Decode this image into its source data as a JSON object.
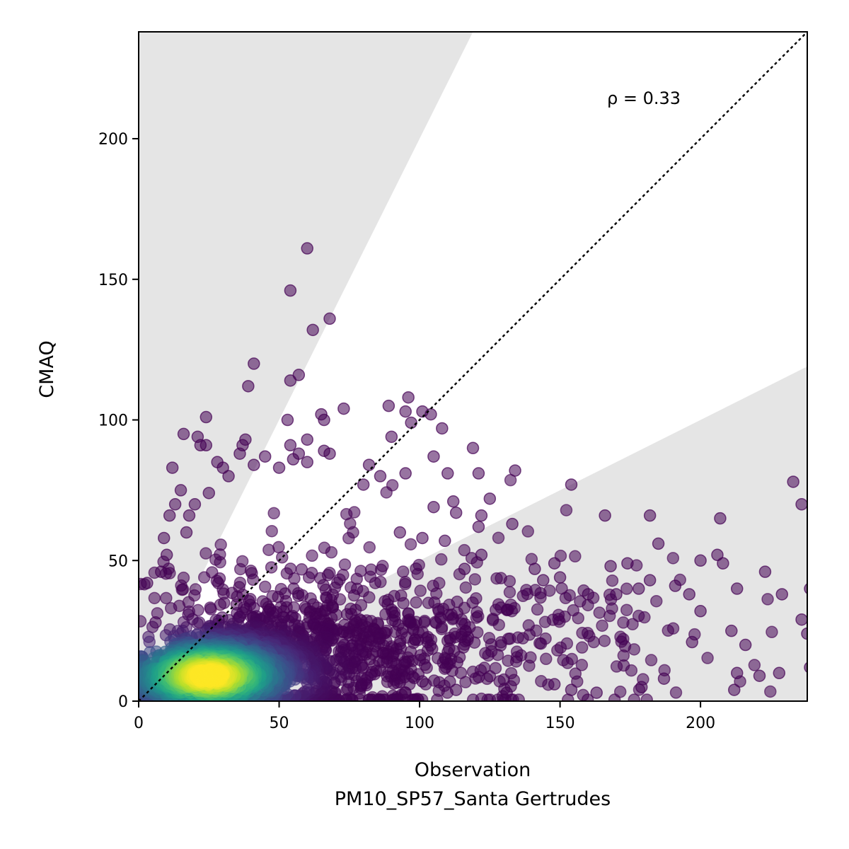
{
  "chart_data": {
    "type": "scatter",
    "title": "",
    "xlabel": "Observation",
    "xlabel_line2": "PM10_SP57_Santa Gertrudes",
    "ylabel": "CMAQ",
    "xlim": [
      0,
      238
    ],
    "ylim": [
      0,
      238
    ],
    "xticks": [
      0,
      50,
      100,
      150,
      200
    ],
    "yticks": [
      0,
      50,
      100,
      150,
      200
    ],
    "xtick_labels": [
      "0",
      "50",
      "100",
      "150",
      "200"
    ],
    "ytick_labels": [
      "0",
      "50",
      "100",
      "150",
      "200"
    ],
    "annotation": "ρ = 0.33",
    "identity_line": {
      "style": "dotted",
      "from": [
        0,
        0
      ],
      "to": [
        238,
        238
      ]
    },
    "shaded_bands": [
      {
        "description": "y > 2x",
        "slope_min": 2,
        "color": "#e5e5e5"
      },
      {
        "description": "y < 0.5x",
        "slope_max": 0.5,
        "color": "#e5e5e5"
      }
    ],
    "colormap": "viridis (point density)",
    "point_alpha": 0.55,
    "grid": false,
    "legend": "none",
    "outlier_points": [
      [
        60,
        161
      ],
      [
        54,
        146
      ],
      [
        62,
        132
      ],
      [
        68,
        136
      ],
      [
        41,
        120
      ],
      [
        39,
        112
      ],
      [
        57,
        116
      ],
      [
        54,
        114
      ],
      [
        24,
        101
      ],
      [
        21,
        94
      ],
      [
        16,
        95
      ],
      [
        22,
        91
      ],
      [
        24,
        91
      ],
      [
        12,
        83
      ],
      [
        38,
        93
      ],
      [
        37,
        91
      ],
      [
        36,
        88
      ],
      [
        41,
        84
      ],
      [
        45,
        87
      ],
      [
        50,
        83
      ],
      [
        54,
        91
      ],
      [
        57,
        88
      ],
      [
        55,
        86
      ],
      [
        53,
        100
      ],
      [
        65,
        102
      ],
      [
        66,
        100
      ],
      [
        60,
        93
      ],
      [
        60,
        85
      ],
      [
        66,
        89
      ],
      [
        68,
        88
      ],
      [
        73,
        104
      ],
      [
        89,
        105
      ],
      [
        96,
        108
      ],
      [
        95,
        103
      ],
      [
        101,
        103
      ],
      [
        104,
        102
      ],
      [
        97,
        99
      ],
      [
        108,
        97
      ],
      [
        105,
        87
      ],
      [
        82,
        84
      ],
      [
        86,
        80
      ],
      [
        95,
        81
      ],
      [
        110,
        81
      ],
      [
        121,
        81
      ],
      [
        134,
        82
      ],
      [
        154,
        77
      ],
      [
        166,
        66
      ],
      [
        182,
        66
      ],
      [
        207,
        65
      ],
      [
        233,
        78
      ],
      [
        236,
        70
      ],
      [
        90,
        94
      ],
      [
        119,
        90
      ],
      [
        80,
        77
      ],
      [
        112,
        71
      ],
      [
        105,
        69
      ],
      [
        113,
        67
      ],
      [
        125,
        72
      ],
      [
        122,
        66
      ],
      [
        133,
        63
      ],
      [
        121,
        62
      ],
      [
        93,
        60
      ],
      [
        101,
        58
      ],
      [
        109,
        57
      ],
      [
        185,
        56
      ],
      [
        206,
        52
      ],
      [
        200,
        50
      ],
      [
        148,
        49
      ],
      [
        168,
        48
      ],
      [
        174,
        49
      ],
      [
        223,
        46
      ],
      [
        208,
        49
      ],
      [
        239,
        40
      ],
      [
        229,
        38
      ],
      [
        213,
        40
      ],
      [
        191,
        41
      ],
      [
        196,
        38
      ],
      [
        182,
        43
      ],
      [
        178,
        40
      ],
      [
        170,
        38
      ],
      [
        160,
        38
      ],
      [
        141,
        47
      ],
      [
        144,
        43
      ],
      [
        150,
        44
      ],
      [
        116,
        47
      ],
      [
        122,
        52
      ],
      [
        200,
        32
      ],
      [
        211,
        25
      ],
      [
        236,
        29
      ],
      [
        238,
        24
      ],
      [
        216,
        20
      ],
      [
        197,
        21
      ],
      [
        213,
        10
      ],
      [
        212,
        4
      ],
      [
        239,
        12
      ],
      [
        228,
        10
      ],
      [
        221,
        9
      ],
      [
        187,
        8
      ],
      [
        179,
        5
      ],
      [
        163,
        3
      ],
      [
        154,
        4
      ],
      [
        148,
        6
      ],
      [
        131,
        3
      ],
      [
        113,
        4
      ],
      [
        101,
        7
      ],
      [
        70,
        3
      ],
      [
        95,
        3
      ],
      [
        3,
        42
      ],
      [
        6,
        28
      ],
      [
        8,
        46
      ],
      [
        10,
        52
      ],
      [
        9,
        58
      ],
      [
        13,
        70
      ],
      [
        15,
        75
      ],
      [
        11,
        66
      ],
      [
        18,
        66
      ],
      [
        20,
        70
      ],
      [
        17,
        60
      ],
      [
        25,
        74
      ],
      [
        28,
        85
      ],
      [
        30,
        83
      ],
      [
        32,
        80
      ]
    ],
    "density_core": {
      "description": "dense cloud of several thousand points; highest density near x≈25, y≈9",
      "peak": [
        25,
        9
      ],
      "main_trend": "points spread widely along x from 0 to 238, y mostly 0-60"
    }
  }
}
